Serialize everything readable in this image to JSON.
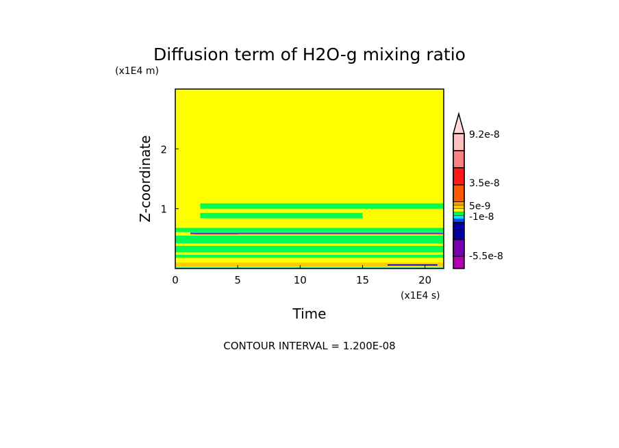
{
  "chart_data": {
    "type": "heatmap",
    "title": "Diffusion term of H2O-g mixing ratio",
    "xlabel": "Time",
    "ylabel": "Z-coordinate",
    "x_unit": "(x1E4 s)",
    "y_unit": "(x1E4 m)",
    "xlim": [
      0,
      21.5
    ],
    "ylim": [
      0,
      3
    ],
    "xticks": [
      0,
      5,
      10,
      15,
      20
    ],
    "xtick_labels": [
      "0",
      "5",
      "10",
      "15",
      "20"
    ],
    "yticks": [
      1,
      2
    ],
    "ytick_labels": [
      "1",
      "2"
    ],
    "footer": "CONTOUR INTERVAL = 1.200E-08",
    "background_level_color": "#ffff00",
    "colorbar": {
      "labels": [
        {
          "text": "9.2e-8",
          "pos": 0.0
        },
        {
          "text": "3.5e-8",
          "pos": 0.36
        },
        {
          "text": "5e-9",
          "pos": 0.53
        },
        {
          "text": "-1e-8",
          "pos": 0.61
        },
        {
          "text": "-5.5e-8",
          "pos": 0.9
        }
      ],
      "colors": [
        "#ffc0c0",
        "#ff8080",
        "#ff1a1a",
        "#ff5a00",
        "#ffa000",
        "#ffcc00",
        "#ffff00",
        "#00ff55",
        "#00e0ff",
        "#0050ff",
        "#0000a0",
        "#7800b0",
        "#b000b0"
      ],
      "weights": [
        1,
        1,
        1,
        1,
        0.2,
        0.2,
        0.2,
        0.2,
        0.2,
        0.2,
        1,
        1,
        0.7
      ],
      "top_arrow_color": "#ffd8d8"
    },
    "regions": [
      {
        "color": "#00ff55",
        "x": [
          2,
          21.5
        ],
        "z": [
          1.0,
          1.09
        ]
      },
      {
        "color": "#00ff55",
        "x": [
          2,
          15
        ],
        "z": [
          0.84,
          0.93
        ]
      },
      {
        "color": "#00ff55",
        "x": [
          0,
          21.5
        ],
        "z": [
          0.61,
          0.68
        ]
      },
      {
        "color": "#00e0ff",
        "x": [
          1.2,
          21.5
        ],
        "z": [
          0.595,
          0.61
        ]
      },
      {
        "color": "#0000a0",
        "x": [
          1.2,
          21.5
        ],
        "z": [
          0.585,
          0.595
        ]
      },
      {
        "color": "#ff5a00",
        "x": [
          1.2,
          21.5
        ],
        "z": [
          0.565,
          0.58
        ]
      },
      {
        "color": "#ff1a1a",
        "x": [
          1.5,
          5
        ],
        "z": [
          0.57,
          0.58
        ]
      },
      {
        "color": "#00ff55",
        "x": [
          0,
          21.5
        ],
        "z": [
          0.42,
          0.55
        ]
      },
      {
        "color": "#00ff55",
        "x": [
          0,
          21.5
        ],
        "z": [
          0.27,
          0.38
        ]
      },
      {
        "color": "#00ff55",
        "x": [
          0,
          21.5
        ],
        "z": [
          0.18,
          0.23
        ]
      },
      {
        "color": "#ffcc00",
        "x": [
          0,
          21.5
        ],
        "z": [
          0.03,
          0.1
        ]
      },
      {
        "color": "#00e0ff",
        "x": [
          0,
          21.5
        ],
        "z": [
          0.0,
          0.02
        ]
      },
      {
        "color": "#0000a0",
        "x": [
          17,
          21
        ],
        "z": [
          0.05,
          0.07
        ]
      }
    ]
  }
}
